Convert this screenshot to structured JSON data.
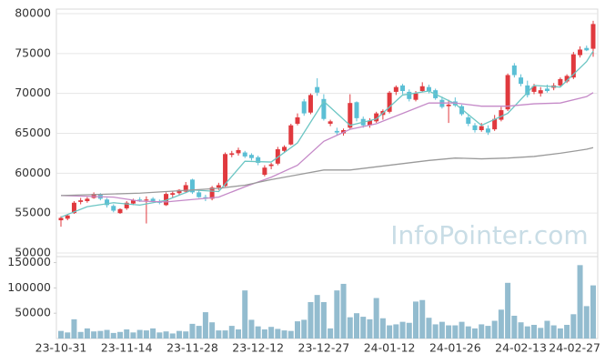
{
  "chart_data": [
    {
      "type": "candlestick",
      "watermark": "InfoPointer.com",
      "ylim": [
        50000,
        80000
      ],
      "yticks": [
        50000,
        55000,
        60000,
        65000,
        70000,
        75000,
        80000
      ],
      "grid": true,
      "up_color": "#e0393e",
      "down_color": "#5bbfd5",
      "open": [
        54100,
        54300,
        55000,
        56400,
        56500,
        56900,
        57300,
        56700,
        55900,
        55000,
        55600,
        56200,
        56700,
        56600,
        56800,
        56400,
        56000,
        57300,
        57500,
        57700,
        59200,
        57600,
        57000,
        56800,
        58200,
        58400,
        62300,
        62500,
        62600,
        62300,
        62000,
        59800,
        60900,
        61200,
        62800,
        63600,
        66200,
        69000,
        67600,
        70800,
        69300,
        66200,
        65300,
        65000,
        65700,
        68900,
        66800,
        66000,
        66500,
        67300,
        67700,
        70200,
        71000,
        70200,
        69200,
        70300,
        70800,
        70400,
        69200,
        68400,
        69000,
        68400,
        67000,
        66000,
        65400,
        65600,
        65500,
        66700,
        68000,
        73500,
        72000,
        71000,
        70200,
        70000,
        70600,
        70700,
        71000,
        71500,
        72000,
        74800,
        75700,
        75600
      ],
      "high": [
        54600,
        54800,
        56500,
        56900,
        57000,
        57600,
        57500,
        56900,
        56100,
        55600,
        56500,
        56800,
        57000,
        57100,
        57000,
        56700,
        57600,
        57700,
        58000,
        58900,
        59300,
        57900,
        57300,
        58400,
        58800,
        62600,
        62800,
        63200,
        62800,
        62500,
        62200,
        61000,
        61300,
        63300,
        63500,
        66200,
        67500,
        69300,
        70000,
        71900,
        69900,
        66700,
        65700,
        65600,
        69900,
        69000,
        67100,
        66900,
        67700,
        68000,
        70300,
        71000,
        71200,
        70500,
        70300,
        71400,
        71100,
        70600,
        69600,
        69200,
        69500,
        68600,
        67300,
        66300,
        66300,
        66000,
        67300,
        68300,
        72500,
        73800,
        72400,
        71600,
        71200,
        70800,
        71100,
        71300,
        72000,
        72400,
        75200,
        75900,
        76000,
        79100
      ],
      "low": [
        53300,
        54100,
        54900,
        56100,
        56300,
        56800,
        56600,
        55700,
        55100,
        54900,
        55400,
        56000,
        56400,
        53700,
        56400,
        56100,
        55900,
        56900,
        57200,
        57500,
        57400,
        56900,
        56500,
        56600,
        57900,
        58300,
        62000,
        62200,
        61900,
        61600,
        61000,
        59600,
        60500,
        61000,
        62600,
        63500,
        66000,
        67200,
        67400,
        69700,
        66600,
        65900,
        64700,
        64700,
        65500,
        66500,
        65700,
        65700,
        66300,
        66700,
        67500,
        69800,
        69900,
        69000,
        69000,
        70200,
        70000,
        69200,
        68100,
        66300,
        68300,
        67200,
        65900,
        65100,
        65200,
        64800,
        65300,
        66500,
        67800,
        72000,
        70900,
        69500,
        69900,
        69600,
        70100,
        70400,
        70800,
        71300,
        71800,
        74500,
        75300,
        74600
      ],
      "close": [
        54400,
        54700,
        56300,
        56600,
        56800,
        57400,
        56800,
        56000,
        55300,
        55500,
        56300,
        56600,
        56600,
        56700,
        56500,
        56300,
        57400,
        57500,
        57900,
        58500,
        57600,
        57000,
        56800,
        58200,
        58500,
        62400,
        62500,
        62900,
        62100,
        61900,
        61300,
        60700,
        61100,
        63000,
        63300,
        66000,
        67000,
        67500,
        69800,
        70100,
        66800,
        66500,
        65100,
        65400,
        68800,
        66900,
        66000,
        66600,
        67500,
        67800,
        70100,
        70800,
        70300,
        69300,
        70000,
        70900,
        70300,
        69400,
        68300,
        68600,
        68500,
        67400,
        66200,
        65400,
        65900,
        65100,
        66800,
        67900,
        72300,
        72300,
        71200,
        69800,
        70900,
        70400,
        70300,
        71000,
        71800,
        72200,
        74900,
        75500,
        75400,
        78700
      ],
      "series": [
        {
          "color": "#6cc6c4",
          "x": [
            0,
            4,
            8,
            12,
            16,
            20,
            24,
            28,
            32,
            36,
            40,
            44,
            48,
            52,
            56,
            60,
            64,
            68,
            72,
            76,
            80,
            81
          ],
          "values": [
            54500,
            55800,
            56300,
            56000,
            56600,
            57900,
            57700,
            61500,
            61400,
            63800,
            69000,
            66000,
            66800,
            69800,
            70300,
            68700,
            66000,
            67500,
            71000,
            70800,
            74000,
            75300
          ]
        },
        {
          "color": "#c58ac8",
          "x": [
            0,
            4,
            8,
            12,
            16,
            20,
            24,
            28,
            32,
            36,
            40,
            44,
            48,
            52,
            56,
            60,
            64,
            68,
            72,
            76,
            80,
            81
          ],
          "values": [
            57200,
            57100,
            57000,
            56500,
            56400,
            56700,
            57000,
            58300,
            59500,
            61000,
            64000,
            65500,
            66200,
            67500,
            68800,
            68800,
            68400,
            68400,
            68700,
            68800,
            69600,
            70100
          ]
        },
        {
          "color": "#9a9a9a",
          "x": [
            0,
            4,
            8,
            12,
            16,
            20,
            24,
            28,
            32,
            36,
            40,
            44,
            48,
            52,
            56,
            60,
            64,
            68,
            72,
            76,
            80,
            81
          ],
          "values": [
            57200,
            57300,
            57400,
            57500,
            57700,
            57900,
            58100,
            58500,
            59200,
            59800,
            60400,
            60400,
            60800,
            61200,
            61600,
            61900,
            61800,
            61900,
            62100,
            62500,
            63000,
            63200
          ]
        }
      ]
    },
    {
      "type": "bar",
      "color": "#93bccf",
      "ylim": [
        0,
        160000
      ],
      "yticks": [
        50000,
        100000,
        150000
      ],
      "categories": [
        "23-10-31",
        null,
        null,
        null,
        null,
        null,
        null,
        null,
        null,
        null,
        "23-11-14",
        null,
        null,
        null,
        null,
        null,
        null,
        null,
        null,
        null,
        "23-11-28",
        null,
        null,
        null,
        null,
        null,
        null,
        null,
        null,
        null,
        "23-12-12",
        null,
        null,
        null,
        null,
        null,
        null,
        null,
        null,
        null,
        "23-12-27",
        null,
        null,
        null,
        null,
        null,
        null,
        null,
        null,
        null,
        "24-01-12",
        null,
        null,
        null,
        null,
        null,
        null,
        null,
        null,
        null,
        "24-01-26",
        null,
        null,
        null,
        null,
        null,
        null,
        null,
        null,
        null,
        "24-02-13",
        null,
        null,
        null,
        null,
        null,
        null,
        null,
        null,
        null,
        "24-02-27",
        null
      ],
      "values": [
        15000,
        12000,
        38000,
        13000,
        20000,
        14000,
        15000,
        17000,
        11000,
        13000,
        18000,
        12000,
        17000,
        16000,
        20000,
        12000,
        14000,
        10000,
        15000,
        14000,
        29000,
        25000,
        52000,
        32000,
        16000,
        16000,
        25000,
        18000,
        95000,
        37000,
        24000,
        18000,
        23000,
        19000,
        16000,
        15000,
        34000,
        37000,
        72000,
        86000,
        72000,
        20000,
        95000,
        108000,
        42000,
        50000,
        43000,
        38000,
        80000,
        40000,
        26000,
        28000,
        33000,
        31000,
        73000,
        76000,
        41000,
        28000,
        33000,
        26000,
        26000,
        33000,
        24000,
        20000,
        28000,
        25000,
        35000,
        57000,
        110000,
        45000,
        32000,
        24000,
        27000,
        21000,
        35000,
        26000,
        20000,
        27000,
        48000,
        145000,
        64000,
        105000
      ]
    }
  ]
}
